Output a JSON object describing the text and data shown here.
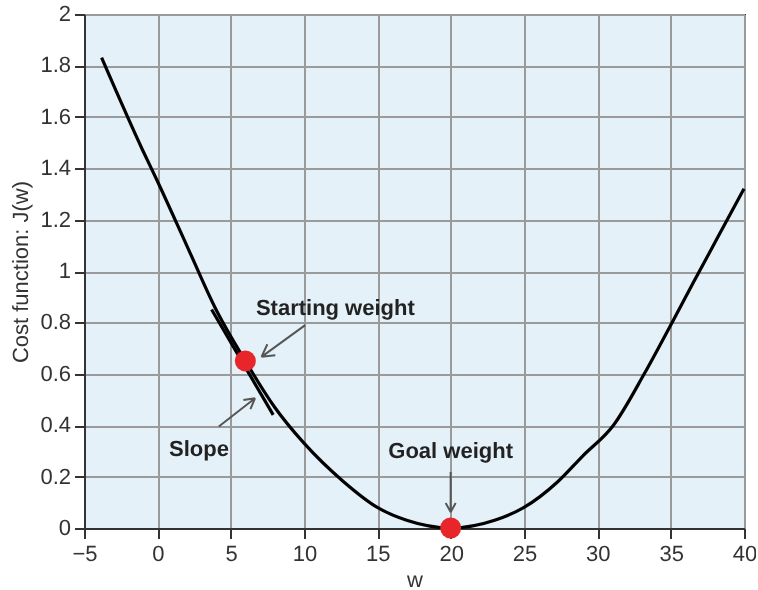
{
  "chart_data": {
    "type": "line",
    "xlabel": "w",
    "ylabel": "Cost function: J(w)",
    "xlim": [
      -5,
      40
    ],
    "xticks": [
      -5,
      0,
      5,
      10,
      15,
      20,
      25,
      30,
      35,
      40
    ],
    "ylim": [
      0,
      2
    ],
    "yticks": [
      0,
      0.2,
      0.4,
      0.6,
      0.8,
      1,
      1.2,
      1.4,
      1.6,
      1.8,
      2
    ],
    "grid": true,
    "marker": "none",
    "line_style": "solid",
    "series": [
      {
        "type": "line",
        "color": "#000000",
        "x": [
          -3.8,
          -1,
          0,
          2,
          4,
          6,
          8,
          10,
          12.7,
          15,
          17,
          20,
          23,
          25,
          27.3,
          29,
          31.1,
          33.2,
          35.1,
          36.5,
          38.2,
          40
        ],
        "values": [
          1.83,
          1.47,
          1.35,
          1.1,
          0.85,
          0.65,
          0.47,
          0.33,
          0.18,
          0.08,
          0.03,
          0,
          0.03,
          0.08,
          0.18,
          0.28,
          0.4,
          0.6,
          0.8,
          0.95,
          1.13,
          1.32
        ]
      },
      {
        "type": "line",
        "color": "#000000",
        "x": [
          3.7,
          7.9
        ],
        "values": [
          0.85,
          0.44
        ]
      },
      {
        "type": "scatter",
        "color": "#e8262a",
        "marker": "circle",
        "x": [
          6,
          20
        ],
        "values": [
          0.65,
          0
        ]
      }
    ],
    "annotations": [
      {
        "text": "Starting weight",
        "x": 6,
        "y": 0.65
      },
      {
        "text": "Slope",
        "x": 7.2,
        "y": 0.52
      },
      {
        "text": "Goal weight",
        "x": 20,
        "y": 0
      }
    ]
  }
}
